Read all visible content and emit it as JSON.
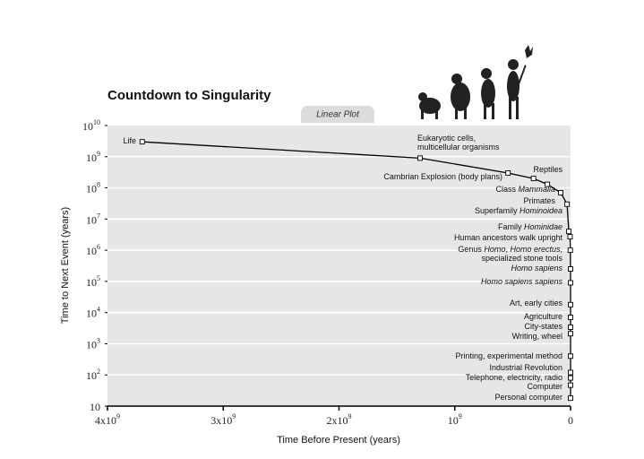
{
  "chart_data": {
    "type": "line",
    "title": "Countdown to Singularity",
    "tab_label": "Linear Plot",
    "xlabel": "Time Before Present (years)",
    "ylabel": "Time to Next Event (years)",
    "xlim": [
      4000000000,
      0
    ],
    "ylim": [
      10,
      10000000000
    ],
    "yscale": "log",
    "grid": true,
    "color": "#000000",
    "xticks": [
      {
        "value": 4000000000,
        "label": "4x10",
        "exponent": "9"
      },
      {
        "value": 3000000000,
        "label": "3x10",
        "exponent": "9"
      },
      {
        "value": 2000000000,
        "label": "2x10",
        "exponent": "9"
      },
      {
        "value": 1000000000,
        "label": "10",
        "exponent": "9"
      },
      0
    ],
    "yticks": [
      10,
      {
        "value": 100,
        "label": "10",
        "exponent": "2"
      },
      {
        "value": 1000,
        "label": "10",
        "exponent": "3"
      },
      {
        "value": 10000,
        "label": "10",
        "exponent": "4"
      },
      {
        "value": 100000,
        "label": "10",
        "exponent": "5"
      },
      {
        "value": 1000000,
        "label": "10",
        "exponent": "6"
      },
      {
        "value": 10000000,
        "label": "10",
        "exponent": "7"
      },
      {
        "value": 100000000,
        "label": "10",
        "exponent": "8"
      },
      {
        "value": 1000000000,
        "label": "10",
        "exponent": "9"
      },
      {
        "value": 10000000000,
        "label": "10",
        "exponent": "10"
      }
    ],
    "x": [
      3700000000,
      1300000000,
      540000000,
      320000000,
      200000000,
      85000000,
      30000000,
      15000000,
      4000000,
      2000000,
      200000,
      100000,
      25000,
      11000,
      5000,
      4000,
      550,
      200,
      100,
      50,
      20
    ],
    "values": [
      3000000000,
      900000000,
      300000000,
      200000000,
      130000000,
      70000000,
      30000000,
      4000000,
      2700000,
      1000000,
      250000,
      90000,
      18000,
      7000,
      3400,
      2100,
      400,
      120,
      80,
      47,
      18
    ],
    "point_labels": [
      [
        [
          "Life"
        ]
      ],
      [
        [
          "Eukaryotic cells,"
        ],
        [
          "multicellular organisms"
        ]
      ],
      [
        [
          "Cambrian Explosion (body plans)"
        ]
      ],
      [
        [
          "Reptiles"
        ]
      ],
      [
        [
          "Class ",
          {
            "text": "Mammalia",
            "italic": true
          }
        ]
      ],
      [
        [
          "Primates"
        ]
      ],
      [
        [
          "Superfamily ",
          {
            "text": "Hominoidea",
            "italic": true
          }
        ]
      ],
      [
        [
          "Family ",
          {
            "text": "Hominidae",
            "italic": true
          }
        ]
      ],
      [
        [
          "Human ancestors walk upright"
        ]
      ],
      [
        [
          "Genus ",
          {
            "text": "Homo",
            "italic": true
          },
          ", ",
          {
            "text": "Homo erectus",
            "italic": true
          },
          ","
        ],
        [
          "specialized stone tools"
        ]
      ],
      [
        [
          {
            "text": "Homo sapiens",
            "italic": true
          }
        ]
      ],
      [
        [
          {
            "text": "Homo sapiens sapiens",
            "italic": true
          }
        ]
      ],
      [
        [
          "Art, early cities"
        ]
      ],
      [
        [
          "Agriculture"
        ]
      ],
      [
        [
          "City-states"
        ]
      ],
      [
        [
          "Writing, wheel"
        ]
      ],
      [
        [
          "Printing, experimental method"
        ]
      ],
      [
        [
          "Industrial Revolution"
        ]
      ],
      [
        [
          "Telephone,  electricity, radio"
        ]
      ],
      [
        [
          "Computer"
        ]
      ],
      [
        [
          "Personal computer"
        ]
      ]
    ]
  }
}
